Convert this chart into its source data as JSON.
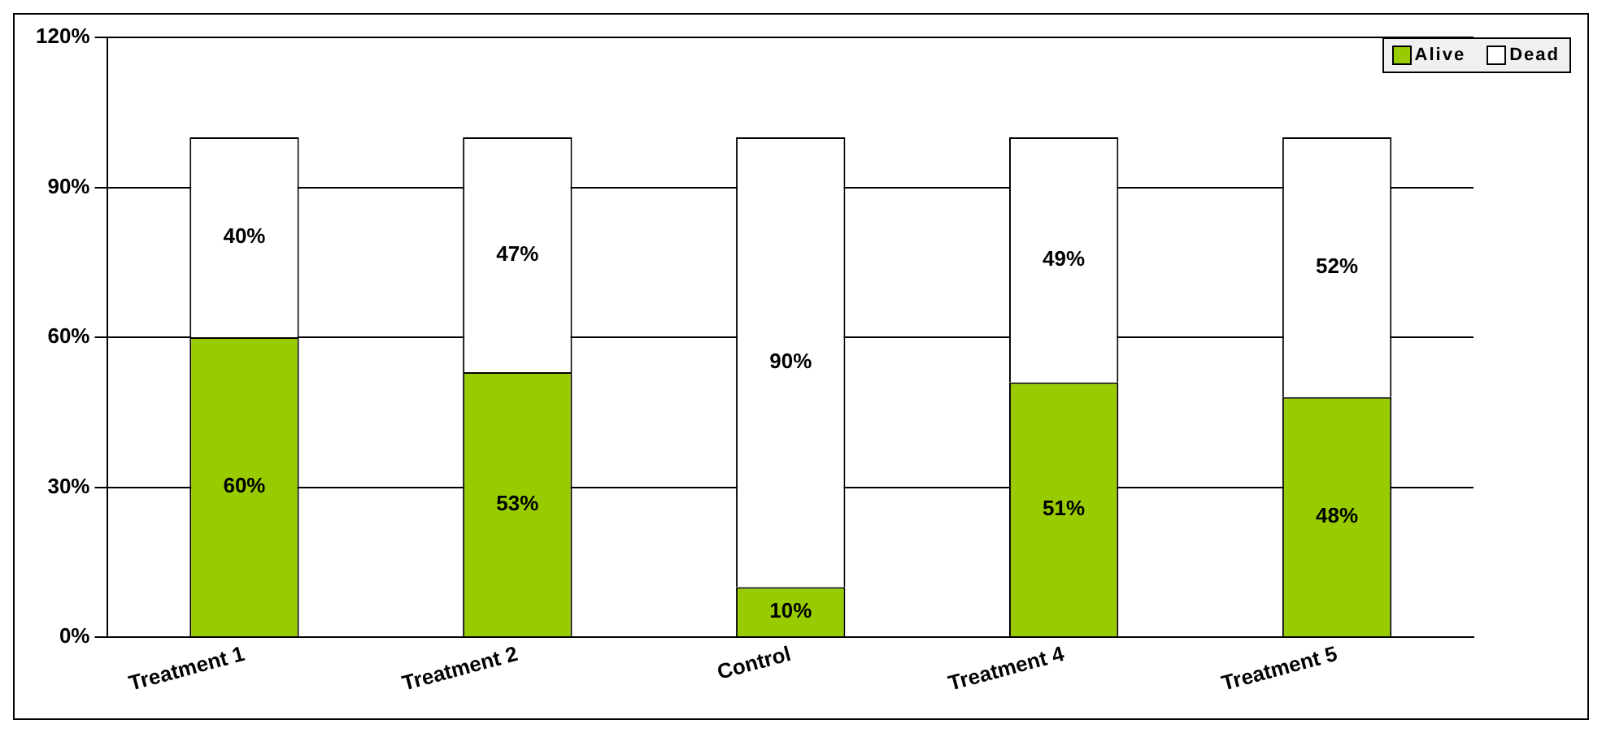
{
  "chart_data": {
    "type": "bar",
    "stacked": true,
    "categories": [
      "Treatment 1",
      "Treatment 2",
      "Control",
      "Treatment 4",
      "Treatment 5"
    ],
    "series": [
      {
        "name": "Alive",
        "color": "#99cc00",
        "values": [
          60,
          53,
          10,
          51,
          48
        ],
        "value_labels": [
          "60%",
          "53%",
          "10%",
          "51%",
          "48%"
        ]
      },
      {
        "name": "Dead",
        "color": "#ffffff",
        "values": [
          40,
          47,
          90,
          49,
          52
        ],
        "value_labels": [
          "40%",
          "47%",
          "90%",
          "49%",
          "52%"
        ]
      }
    ],
    "ylim": [
      0,
      120
    ],
    "yticks": [
      {
        "value": 0,
        "label": "0%"
      },
      {
        "value": 30,
        "label": "30%"
      },
      {
        "value": 60,
        "label": "60%"
      },
      {
        "value": 90,
        "label": "90%"
      },
      {
        "value": 120,
        "label": "120%"
      }
    ],
    "grid": "y",
    "legend": "top right"
  }
}
